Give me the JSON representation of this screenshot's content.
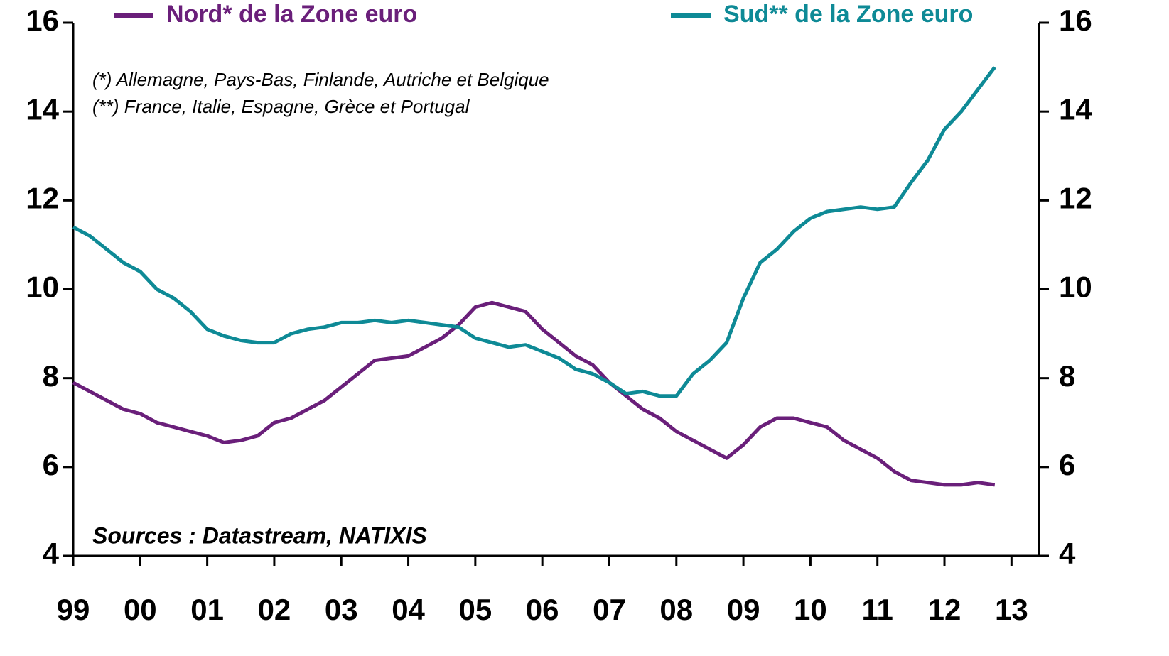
{
  "chart_data": {
    "type": "line",
    "annotations": [
      "(*) Allemagne, Pays-Bas, Finlande, Autriche et Belgique",
      "(**) France, Italie, Espagne, Grèce et Portugal"
    ],
    "source": "Sources : Datastream, NATIXIS",
    "x": [
      1999,
      1999.25,
      1999.5,
      1999.75,
      2000,
      2000.25,
      2000.5,
      2000.75,
      2001,
      2001.25,
      2001.5,
      2001.75,
      2002,
      2002.25,
      2002.5,
      2002.75,
      2003,
      2003.25,
      2003.5,
      2003.75,
      2004,
      2004.25,
      2004.5,
      2004.75,
      2005,
      2005.25,
      2005.5,
      2005.75,
      2006,
      2006.25,
      2006.5,
      2006.75,
      2007,
      2007.25,
      2007.5,
      2007.75,
      2008,
      2008.25,
      2008.5,
      2008.75,
      2009,
      2009.25,
      2009.5,
      2009.75,
      2010,
      2010.25,
      2010.5,
      2010.75,
      2011,
      2011.25,
      2011.5,
      2011.75,
      2012,
      2012.25,
      2012.5,
      2012.75
    ],
    "series": [
      {
        "name": "Nord* de la Zone euro",
        "color": "#6a1f7a",
        "values": [
          7.9,
          7.7,
          7.5,
          7.3,
          7.2,
          7.0,
          6.9,
          6.8,
          6.7,
          6.55,
          6.6,
          6.7,
          7.0,
          7.1,
          7.3,
          7.5,
          7.8,
          8.1,
          8.4,
          8.45,
          8.5,
          8.7,
          8.9,
          9.2,
          9.6,
          9.7,
          9.6,
          9.5,
          9.1,
          8.8,
          8.5,
          8.3,
          7.9,
          7.6,
          7.3,
          7.1,
          6.8,
          6.6,
          6.4,
          6.2,
          6.5,
          6.9,
          7.1,
          7.1,
          7.0,
          6.9,
          6.6,
          6.4,
          6.2,
          5.9,
          5.7,
          5.65,
          5.6,
          5.6,
          5.65,
          5.6
        ]
      },
      {
        "name": "Sud** de la Zone euro",
        "color": "#0e8a96",
        "axis": "y2",
        "values": [
          11.4,
          11.2,
          10.9,
          10.6,
          10.4,
          10.0,
          9.8,
          9.5,
          9.1,
          8.95,
          8.85,
          8.8,
          8.8,
          9.0,
          9.1,
          9.15,
          9.25,
          9.25,
          9.3,
          9.25,
          9.3,
          9.25,
          9.2,
          9.15,
          8.9,
          8.8,
          8.7,
          8.75,
          8.6,
          8.45,
          8.2,
          8.1,
          7.9,
          7.65,
          7.7,
          7.6,
          7.6,
          8.1,
          8.4,
          8.8,
          9.8,
          10.6,
          10.9,
          11.3,
          11.6,
          11.75,
          11.8,
          11.85,
          11.8,
          11.85,
          12.4,
          12.9,
          13.6,
          14.0,
          14.5,
          15.0
        ]
      }
    ],
    "xlim": [
      1999,
      2013.41
    ],
    "xticks": [
      {
        "value": 1999,
        "label": "99"
      },
      {
        "value": 2000,
        "label": "00"
      },
      {
        "value": 2001,
        "label": "01"
      },
      {
        "value": 2002,
        "label": "02"
      },
      {
        "value": 2003,
        "label": "03"
      },
      {
        "value": 2004,
        "label": "04"
      },
      {
        "value": 2005,
        "label": "05"
      },
      {
        "value": 2006,
        "label": "06"
      },
      {
        "value": 2007,
        "label": "07"
      },
      {
        "value": 2008,
        "label": "08"
      },
      {
        "value": 2009,
        "label": "09"
      },
      {
        "value": 2010,
        "label": "10"
      },
      {
        "value": 2011,
        "label": "11"
      },
      {
        "value": 2012,
        "label": "12"
      },
      {
        "value": 2013,
        "label": "13"
      }
    ],
    "ylim": [
      4,
      16
    ],
    "yticks": [
      4,
      6,
      8,
      10,
      12,
      14,
      16
    ],
    "y2lim": [
      4,
      16
    ],
    "y2ticks": [
      4,
      6,
      8,
      10,
      12,
      14,
      16
    ]
  }
}
